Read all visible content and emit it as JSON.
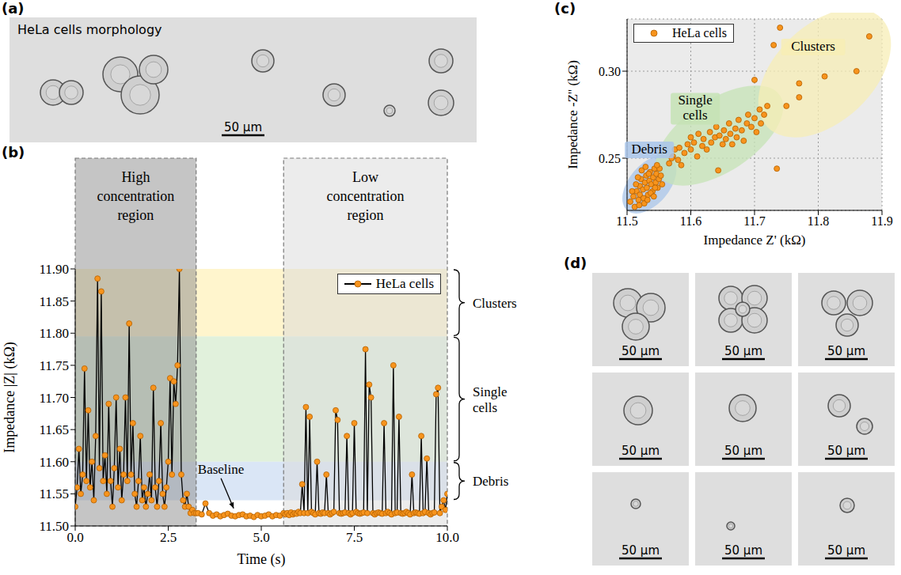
{
  "panel_a": {
    "letter": "(a)",
    "title": "HeLa cells morphology",
    "scale_bar": "50 µm"
  },
  "chart_data": [
    {
      "letter": "(b)",
      "type": "line",
      "x_label": "Time (s)",
      "y_label": "Impedance |Z| (kΩ)",
      "xlim": [
        0,
        10
      ],
      "xticks": [
        {
          "value": 0,
          "label": "0.0"
        },
        2.5,
        {
          "value": 5,
          "label": "5.0"
        },
        7.5,
        {
          "value": 10,
          "label": "10.0"
        }
      ],
      "ylim": [
        11.5,
        11.9
      ],
      "yticks": [
        {
          "value": 11.5,
          "label": "11.50"
        },
        11.55,
        {
          "value": 11.6,
          "label": "11.60"
        },
        11.65,
        {
          "value": 11.7,
          "label": "11.70"
        },
        11.75,
        {
          "value": 11.8,
          "label": "11.80"
        },
        11.85,
        {
          "value": 11.9,
          "label": "11.90"
        }
      ],
      "grid": false,
      "legend": "upper right",
      "x": [
        0,
        0.05,
        0.1,
        0.15,
        0.2,
        0.25,
        0.3,
        0.35,
        0.4,
        0.45,
        0.5,
        0.55,
        0.6,
        0.65,
        0.7,
        0.75,
        0.8,
        0.85,
        0.9,
        0.95,
        1,
        1.05,
        1.1,
        1.15,
        1.2,
        1.25,
        1.3,
        1.35,
        1.4,
        1.45,
        1.5,
        1.55,
        1.6,
        1.65,
        1.7,
        1.75,
        1.8,
        1.85,
        1.9,
        1.95,
        2,
        2.05,
        2.1,
        2.15,
        2.2,
        2.25,
        2.3,
        2.35,
        2.4,
        2.45,
        2.5,
        2.55,
        2.6,
        2.65,
        2.7,
        2.75,
        2.8,
        2.85,
        2.9,
        2.95,
        3,
        3.05,
        3.1,
        3.15,
        3.2,
        3.25,
        3.3,
        3.4,
        3.5,
        3.6,
        3.7,
        3.8,
        3.9,
        4,
        4.1,
        4.2,
        4.3,
        4.4,
        4.5,
        4.6,
        4.7,
        4.8,
        4.9,
        5,
        5.1,
        5.2,
        5.3,
        5.4,
        5.5,
        5.6,
        5.65,
        5.7,
        5.75,
        5.8,
        5.85,
        5.9,
        5.95,
        6,
        6.05,
        6.1,
        6.15,
        6.2,
        6.25,
        6.3,
        6.35,
        6.4,
        6.45,
        6.5,
        6.55,
        6.6,
        6.65,
        6.7,
        6.75,
        6.8,
        6.85,
        6.9,
        6.95,
        7,
        7.05,
        7.1,
        7.15,
        7.2,
        7.25,
        7.3,
        7.35,
        7.4,
        7.45,
        7.5,
        7.55,
        7.6,
        7.65,
        7.7,
        7.75,
        7.8,
        7.85,
        7.9,
        7.95,
        8,
        8.05,
        8.1,
        8.15,
        8.2,
        8.25,
        8.3,
        8.35,
        8.4,
        8.45,
        8.5,
        8.55,
        8.6,
        8.65,
        8.7,
        8.75,
        8.8,
        8.85,
        8.9,
        8.95,
        9,
        9.05,
        9.1,
        9.15,
        9.2,
        9.25,
        9.3,
        9.35,
        9.4,
        9.45,
        9.5,
        9.55,
        9.6,
        9.65,
        9.7,
        9.75,
        9.8,
        9.85,
        9.9,
        9.95,
        10
      ],
      "series": [
        {
          "name": "HeLa cells",
          "color": "#f7941d",
          "marker": "circle",
          "values": [
            11.53,
            11.56,
            11.62,
            11.55,
            11.58,
            11.745,
            11.57,
            11.68,
            11.56,
            11.6,
            11.54,
            11.64,
            11.885,
            11.59,
            11.865,
            11.57,
            11.61,
            11.55,
            11.69,
            11.57,
            11.53,
            11.59,
            11.7,
            11.56,
            11.62,
            11.54,
            11.58,
            11.7,
            11.57,
            11.815,
            11.58,
            11.66,
            11.55,
            11.53,
            11.57,
            11.64,
            11.54,
            11.56,
            11.53,
            11.55,
            11.58,
            11.54,
            11.715,
            11.56,
            11.53,
            11.57,
            11.66,
            11.55,
            11.53,
            11.56,
            11.6,
            11.73,
            11.58,
            11.725,
            11.69,
            11.75,
            11.9,
            11.58,
            11.54,
            11.53,
            11.55,
            11.53,
            11.52,
            11.525,
            11.52,
            11.52,
            11.52,
            11.518,
            11.535,
            11.52,
            11.516,
            11.518,
            11.515,
            11.517,
            11.519,
            11.516,
            11.515,
            11.517,
            11.518,
            11.515,
            11.516,
            11.514,
            11.517,
            11.515,
            11.516,
            11.518,
            11.515,
            11.517,
            11.516,
            11.52,
            11.518,
            11.52,
            11.517,
            11.521,
            11.518,
            11.52,
            11.519,
            11.522,
            11.52,
            11.565,
            11.52,
            11.685,
            11.52,
            11.67,
            11.522,
            11.52,
            11.518,
            11.6,
            11.52,
            11.519,
            11.521,
            11.52,
            11.58,
            11.52,
            11.518,
            11.52,
            11.522,
            11.68,
            11.665,
            11.52,
            11.519,
            11.52,
            11.521,
            11.64,
            11.52,
            11.518,
            11.52,
            11.66,
            11.522,
            11.52,
            11.519,
            11.52,
            11.521,
            11.775,
            11.52,
            11.72,
            11.7,
            11.52,
            11.518,
            11.52,
            11.521,
            11.52,
            11.519,
            11.66,
            11.52,
            11.522,
            11.52,
            11.518,
            11.75,
            11.52,
            11.521,
            11.67,
            11.52,
            11.519,
            11.52,
            11.522,
            11.52,
            11.518,
            11.58,
            11.52,
            11.521,
            11.52,
            11.519,
            11.64,
            11.52,
            11.522,
            11.605,
            11.52,
            11.518,
            11.52,
            11.521,
            11.705,
            11.715,
            11.52,
            11.53,
            11.54,
            11.525,
            11.55
          ]
        }
      ],
      "bands": [
        {
          "label": "Clusters",
          "range": [
            11.795,
            11.9
          ],
          "color": "#fff3c4"
        },
        {
          "label": "Single cells",
          "range": [
            11.6,
            11.795
          ],
          "color": "#dcefd6"
        },
        {
          "label": "Debris",
          "range": [
            11.54,
            11.6
          ],
          "color": "#d3e2f4"
        }
      ],
      "regions": [
        {
          "label": "High concentration region",
          "range": [
            0,
            3.25
          ],
          "color": "#8c8c8c"
        },
        {
          "label": "Low concentration region",
          "range": [
            5.6,
            10
          ],
          "color": "#d9d9d9"
        }
      ],
      "annotations": [
        {
          "text": "Baseline",
          "x": 4.3,
          "y": 11.52
        }
      ]
    },
    {
      "letter": "(c)",
      "type": "scatter",
      "x_label": "Impedance Z' (kΩ)",
      "y_label": "Impedance -Z'' (kΩ)",
      "xlim": [
        11.5,
        11.9
      ],
      "xticks": [
        11.5,
        11.6,
        11.7,
        11.8,
        11.9
      ],
      "ylim": [
        0.22,
        0.33
      ],
      "yticks": [
        0.25,
        {
          "value": 0.3,
          "label": "0.30"
        }
      ],
      "grid": true,
      "legend": "upper left",
      "x": [
        11.505,
        11.51,
        11.512,
        11.515,
        11.518,
        11.52,
        11.52,
        11.522,
        11.525,
        11.526,
        11.528,
        11.53,
        11.531,
        11.533,
        11.535,
        11.536,
        11.538,
        11.54,
        11.541,
        11.543,
        11.545,
        11.546,
        11.548,
        11.55,
        11.551,
        11.553,
        11.555,
        11.514,
        11.508,
        11.517,
        11.523,
        11.527,
        11.532,
        11.537,
        11.542,
        11.547,
        11.519,
        11.529,
        11.534,
        11.544,
        11.566,
        11.572,
        11.57,
        11.575,
        11.58,
        11.582,
        11.59,
        11.595,
        11.6,
        11.6,
        11.605,
        11.61,
        11.612,
        11.618,
        11.62,
        11.625,
        11.63,
        11.632,
        11.638,
        11.64,
        11.643,
        11.645,
        11.65,
        11.652,
        11.655,
        11.66,
        11.662,
        11.665,
        11.67,
        11.672,
        11.675,
        11.68,
        11.683,
        11.688,
        11.69,
        11.695,
        11.7,
        11.703,
        11.708,
        11.71,
        11.715,
        11.72,
        11.585,
        11.7,
        11.74,
        11.73,
        11.75,
        11.735,
        11.77,
        11.77,
        11.81,
        11.86,
        11.88
      ],
      "series": [
        {
          "name": "HeLa cells",
          "color": "#f7941d",
          "marker": "circle",
          "values": [
            0.225,
            0.228,
            0.222,
            0.231,
            0.226,
            0.234,
            0.229,
            0.238,
            0.232,
            0.227,
            0.236,
            0.24,
            0.233,
            0.229,
            0.237,
            0.242,
            0.235,
            0.231,
            0.239,
            0.244,
            0.236,
            0.241,
            0.233,
            0.238,
            0.244,
            0.24,
            0.235,
            0.235,
            0.231,
            0.239,
            0.243,
            0.224,
            0.226,
            0.23,
            0.228,
            0.246,
            0.223,
            0.245,
            0.241,
            0.233,
            0.247,
            0.251,
            0.25,
            0.255,
            0.249,
            0.256,
            0.253,
            0.258,
            0.255,
            0.262,
            0.259,
            0.251,
            0.264,
            0.257,
            0.261,
            0.255,
            0.265,
            0.259,
            0.262,
            0.268,
            0.243,
            0.263,
            0.258,
            0.266,
            0.261,
            0.27,
            0.264,
            0.258,
            0.267,
            0.262,
            0.272,
            0.266,
            0.26,
            0.27,
            0.275,
            0.268,
            0.273,
            0.265,
            0.278,
            0.27,
            0.275,
            0.28,
            0.246,
            0.295,
            0.325,
            0.315,
            0.28,
            0.244,
            0.285,
            0.293,
            0.297,
            0.3,
            0.32
          ]
        }
      ],
      "regions": [
        {
          "label": "Debris",
          "x_range": [
            11.5,
            11.57
          ],
          "y_range": [
            0.22,
            0.25
          ],
          "color": "#a9c6ea"
        },
        {
          "label": "Single cells",
          "x_range": [
            11.55,
            11.74
          ],
          "y_range": [
            0.24,
            0.286
          ],
          "color": "#c6e3b5"
        },
        {
          "label": "Clusters",
          "x_range": [
            11.72,
            11.9
          ],
          "y_range": [
            0.268,
            0.33
          ],
          "color": "#f7edb5"
        }
      ]
    }
  ],
  "panel_d": {
    "letter": "(d)",
    "scale_bars": [
      "50 µm",
      "50 µm",
      "50 µm",
      "50 µm",
      "50 µm",
      "50 µm",
      "50 µm",
      "50 µm",
      "50 µm"
    ]
  }
}
